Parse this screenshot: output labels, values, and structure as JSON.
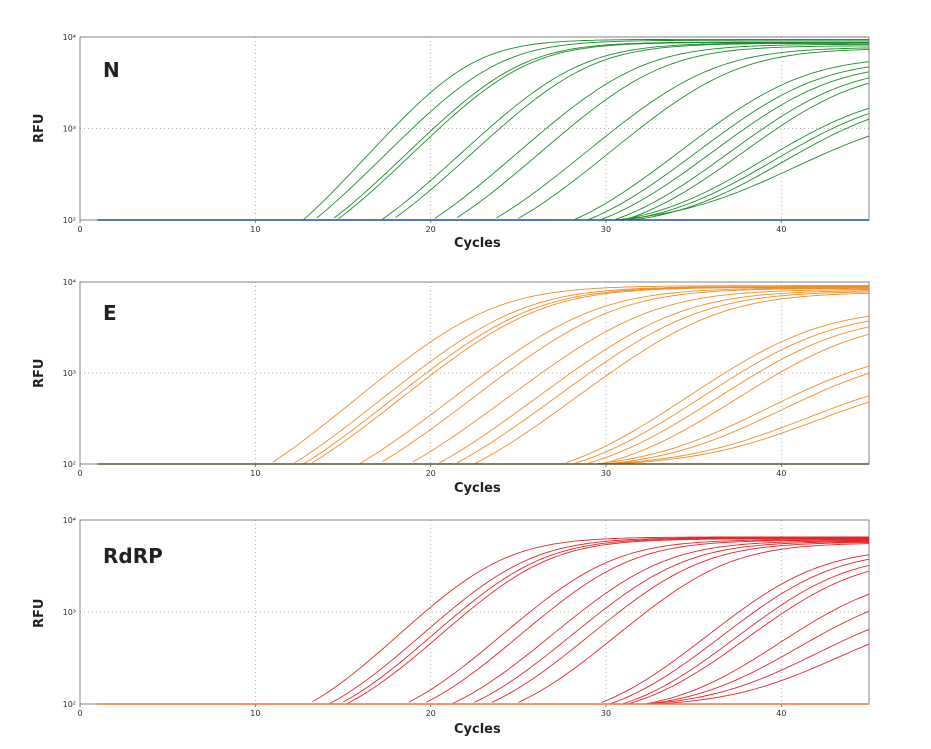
{
  "colors": {
    "N": "#1e8c2e",
    "E": "#f28c28",
    "RdRP": "#e3262a",
    "N_baseline": "#1f4fa0",
    "E_baseline": "#4a5a3a",
    "RdRP_baseline": "#f07828",
    "grid": "#b0b0b0",
    "axis": "#666666",
    "tick_text": "#3a2a1a"
  },
  "chart_data": [
    {
      "type": "line",
      "gene": "N",
      "label": "N",
      "xlabel": "Cycles",
      "ylabel": "RFU",
      "xlim": [
        0,
        45
      ],
      "ylim": [
        100,
        10000
      ],
      "yscale": "log",
      "xticks": [
        "0",
        "10",
        "20",
        "30",
        "40"
      ],
      "yticks": [
        "10²",
        "10³",
        "10⁴"
      ],
      "baseline_value": 100,
      "curves": [
        {
          "ct": 11.5,
          "plateau": 9500,
          "k": 0.52
        },
        {
          "ct": 12.9,
          "plateau": 9300,
          "k": 0.48
        },
        {
          "ct": 14.1,
          "plateau": 8900,
          "k": 0.47
        },
        {
          "ct": 14.4,
          "plateau": 8800,
          "k": 0.47
        },
        {
          "ct": 17.4,
          "plateau": 8700,
          "k": 0.45
        },
        {
          "ct": 18.0,
          "plateau": 8600,
          "k": 0.45
        },
        {
          "ct": 20.8,
          "plateau": 8400,
          "k": 0.43
        },
        {
          "ct": 22.0,
          "plateau": 8100,
          "k": 0.43
        },
        {
          "ct": 24.8,
          "plateau": 7800,
          "k": 0.41
        },
        {
          "ct": 26.1,
          "plateau": 7600,
          "k": 0.41
        },
        {
          "ct": 29.7,
          "plateau": 6200,
          "k": 0.4
        },
        {
          "ct": 30.5,
          "plateau": 5700,
          "k": 0.4
        },
        {
          "ct": 31.2,
          "plateau": 5300,
          "k": 0.4
        },
        {
          "ct": 32.0,
          "plateau": 4900,
          "k": 0.4
        },
        {
          "ct": 32.6,
          "plateau": 4600,
          "k": 0.4
        },
        {
          "ct": 33.3,
          "plateau": 2700,
          "k": 0.37
        },
        {
          "ct": 33.7,
          "plateau": 2500,
          "k": 0.37
        },
        {
          "ct": 34.1,
          "plateau": 2300,
          "k": 0.37
        },
        {
          "ct": 34.6,
          "plateau": 1600,
          "k": 0.33
        }
      ]
    },
    {
      "type": "line",
      "gene": "E",
      "label": "E",
      "xlabel": "Cycles",
      "ylabel": "RFU",
      "xlim": [
        0,
        45
      ],
      "ylim": [
        100,
        10000
      ],
      "yscale": "log",
      "xticks": [
        "0",
        "10",
        "20",
        "30",
        "40"
      ],
      "yticks": [
        "10²",
        "10³",
        "10⁴"
      ],
      "baseline_value": 100,
      "curves": [
        {
          "ct": 12.4,
          "plateau": 9200,
          "k": 0.4
        },
        {
          "ct": 14.0,
          "plateau": 9000,
          "k": 0.39
        },
        {
          "ct": 14.6,
          "plateau": 8900,
          "k": 0.39
        },
        {
          "ct": 15.0,
          "plateau": 8800,
          "k": 0.39
        },
        {
          "ct": 18.1,
          "plateau": 8700,
          "k": 0.38
        },
        {
          "ct": 19.2,
          "plateau": 8600,
          "k": 0.38
        },
        {
          "ct": 21.3,
          "plateau": 8400,
          "k": 0.37
        },
        {
          "ct": 22.9,
          "plateau": 8200,
          "k": 0.37
        },
        {
          "ct": 23.9,
          "plateau": 8000,
          "k": 0.37
        },
        {
          "ct": 25.0,
          "plateau": 7800,
          "k": 0.37
        },
        {
          "ct": 30.4,
          "plateau": 5200,
          "k": 0.36
        },
        {
          "ct": 31.0,
          "plateau": 4800,
          "k": 0.36
        },
        {
          "ct": 31.7,
          "plateau": 4400,
          "k": 0.36
        },
        {
          "ct": 32.6,
          "plateau": 4000,
          "k": 0.36
        },
        {
          "ct": 33.5,
          "plateau": 2000,
          "k": 0.33
        },
        {
          "ct": 34.1,
          "plateau": 1800,
          "k": 0.33
        },
        {
          "ct": 34.9,
          "plateau": 1100,
          "k": 0.31
        },
        {
          "ct": 35.4,
          "plateau": 1000,
          "k": 0.31
        }
      ]
    },
    {
      "type": "line",
      "gene": "RdRP",
      "label": "RdRP",
      "xlabel": "Cycles",
      "ylabel": "RFU",
      "xlim": [
        0,
        45
      ],
      "ylim": [
        100,
        10000
      ],
      "yscale": "log",
      "xticks": [
        "0",
        "10",
        "20",
        "30",
        "40"
      ],
      "yticks": [
        "10²",
        "10³",
        "10⁴"
      ],
      "baseline_value": 100,
      "curves": [
        {
          "ct": 13.0,
          "plateau": 6600,
          "k": 0.46
        },
        {
          "ct": 14.4,
          "plateau": 6500,
          "k": 0.45
        },
        {
          "ct": 15.0,
          "plateau": 6400,
          "k": 0.45
        },
        {
          "ct": 15.4,
          "plateau": 6300,
          "k": 0.45
        },
        {
          "ct": 19.0,
          "plateau": 6200,
          "k": 0.44
        },
        {
          "ct": 20.0,
          "plateau": 6100,
          "k": 0.44
        },
        {
          "ct": 21.9,
          "plateau": 6000,
          "k": 0.43
        },
        {
          "ct": 23.0,
          "plateau": 5900,
          "k": 0.43
        },
        {
          "ct": 24.0,
          "plateau": 5800,
          "k": 0.43
        },
        {
          "ct": 25.5,
          "plateau": 5700,
          "k": 0.43
        },
        {
          "ct": 30.5,
          "plateau": 5000,
          "k": 0.42
        },
        {
          "ct": 31.2,
          "plateau": 4700,
          "k": 0.42
        },
        {
          "ct": 31.9,
          "plateau": 4300,
          "k": 0.42
        },
        {
          "ct": 32.5,
          "plateau": 4000,
          "k": 0.41
        },
        {
          "ct": 33.8,
          "plateau": 2700,
          "k": 0.4
        },
        {
          "ct": 34.6,
          "plateau": 2000,
          "k": 0.38
        },
        {
          "ct": 35.3,
          "plateau": 1400,
          "k": 0.36
        },
        {
          "ct": 36.2,
          "plateau": 1100,
          "k": 0.35
        }
      ]
    }
  ]
}
